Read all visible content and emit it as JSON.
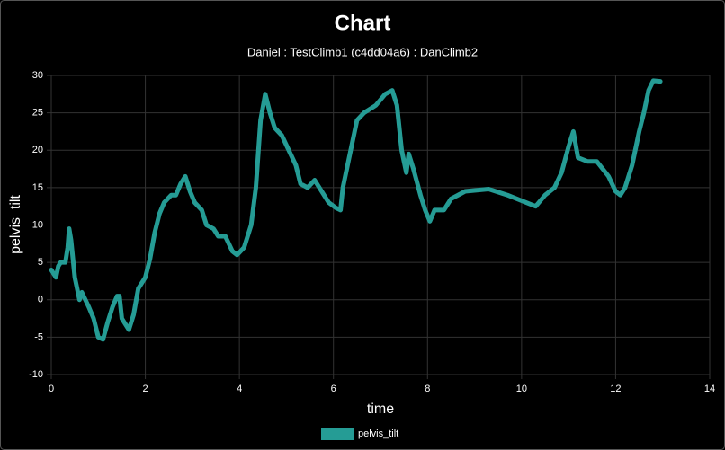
{
  "chart_data": {
    "type": "line",
    "title": "Chart",
    "subtitle": "Daniel : TestClimb1 (c4dd04a6) : DanClimb2",
    "x_label": "time",
    "y_label": "pelvis_tilt",
    "x": [
      0,
      0.1,
      0.15,
      0.2,
      0.3,
      0.35,
      0.38,
      0.42,
      0.5,
      0.6,
      0.65,
      0.8,
      0.9,
      1.0,
      1.1,
      1.2,
      1.3,
      1.4,
      1.45,
      1.5,
      1.6,
      1.65,
      1.75,
      1.85,
      2.0,
      2.1,
      2.2,
      2.3,
      2.4,
      2.55,
      2.65,
      2.75,
      2.85,
      2.95,
      3.05,
      3.2,
      3.3,
      3.45,
      3.55,
      3.7,
      3.85,
      3.95,
      4.1,
      4.25,
      4.35,
      4.45,
      4.55,
      4.65,
      4.75,
      4.9,
      5.05,
      5.2,
      5.3,
      5.45,
      5.6,
      5.75,
      5.9,
      6.05,
      6.15,
      6.2,
      6.3,
      6.4,
      6.5,
      6.65,
      6.9,
      7.1,
      7.25,
      7.35,
      7.45,
      7.55,
      7.6,
      7.7,
      7.85,
      7.95,
      8.05,
      8.15,
      8.35,
      8.5,
      8.8,
      9.3,
      9.7,
      10.1,
      10.3,
      10.5,
      10.7,
      10.85,
      11.0,
      11.1,
      11.2,
      11.4,
      11.6,
      11.85,
      12.0,
      12.1,
      12.2,
      12.35,
      12.5,
      12.6,
      12.7,
      12.8,
      12.95
    ],
    "series": [
      {
        "name": "pelvis_tilt",
        "color": "#259c95",
        "values": [
          4,
          3,
          4.5,
          5,
          5,
          7,
          9.5,
          8,
          3,
          0,
          1,
          -1,
          -2.5,
          -5,
          -5.3,
          -3,
          -1,
          0.5,
          0.5,
          -2.5,
          -3.5,
          -4,
          -2,
          1.5,
          3,
          5.5,
          9,
          11.5,
          13,
          14,
          14,
          15.5,
          16.5,
          14.5,
          13,
          12,
          10,
          9.5,
          8.5,
          8.5,
          6.5,
          6,
          7,
          10,
          15,
          24,
          27.5,
          25,
          23,
          22,
          20,
          18,
          15.5,
          15,
          16,
          14.5,
          13,
          12.3,
          12,
          15,
          18,
          21,
          24,
          25,
          26,
          27.5,
          28,
          26,
          20,
          17,
          19.5,
          17.5,
          14,
          12,
          10.5,
          12,
          12,
          13.5,
          14.5,
          14.8,
          14,
          13,
          12.5,
          14,
          15,
          17,
          20.5,
          22.5,
          19,
          18.5,
          18.5,
          16.5,
          14.5,
          14,
          15,
          18,
          22.5,
          25,
          28,
          29.3,
          29.2
        ]
      }
    ],
    "xlim": [
      0,
      14
    ],
    "xticks": [
      0,
      2,
      4,
      6,
      8,
      10,
      12,
      14
    ],
    "ylim": [
      -10,
      30
    ],
    "yticks": [
      -10,
      -5,
      0,
      5,
      10,
      15,
      20,
      25,
      30
    ],
    "grid": true,
    "legend": "bottom"
  }
}
